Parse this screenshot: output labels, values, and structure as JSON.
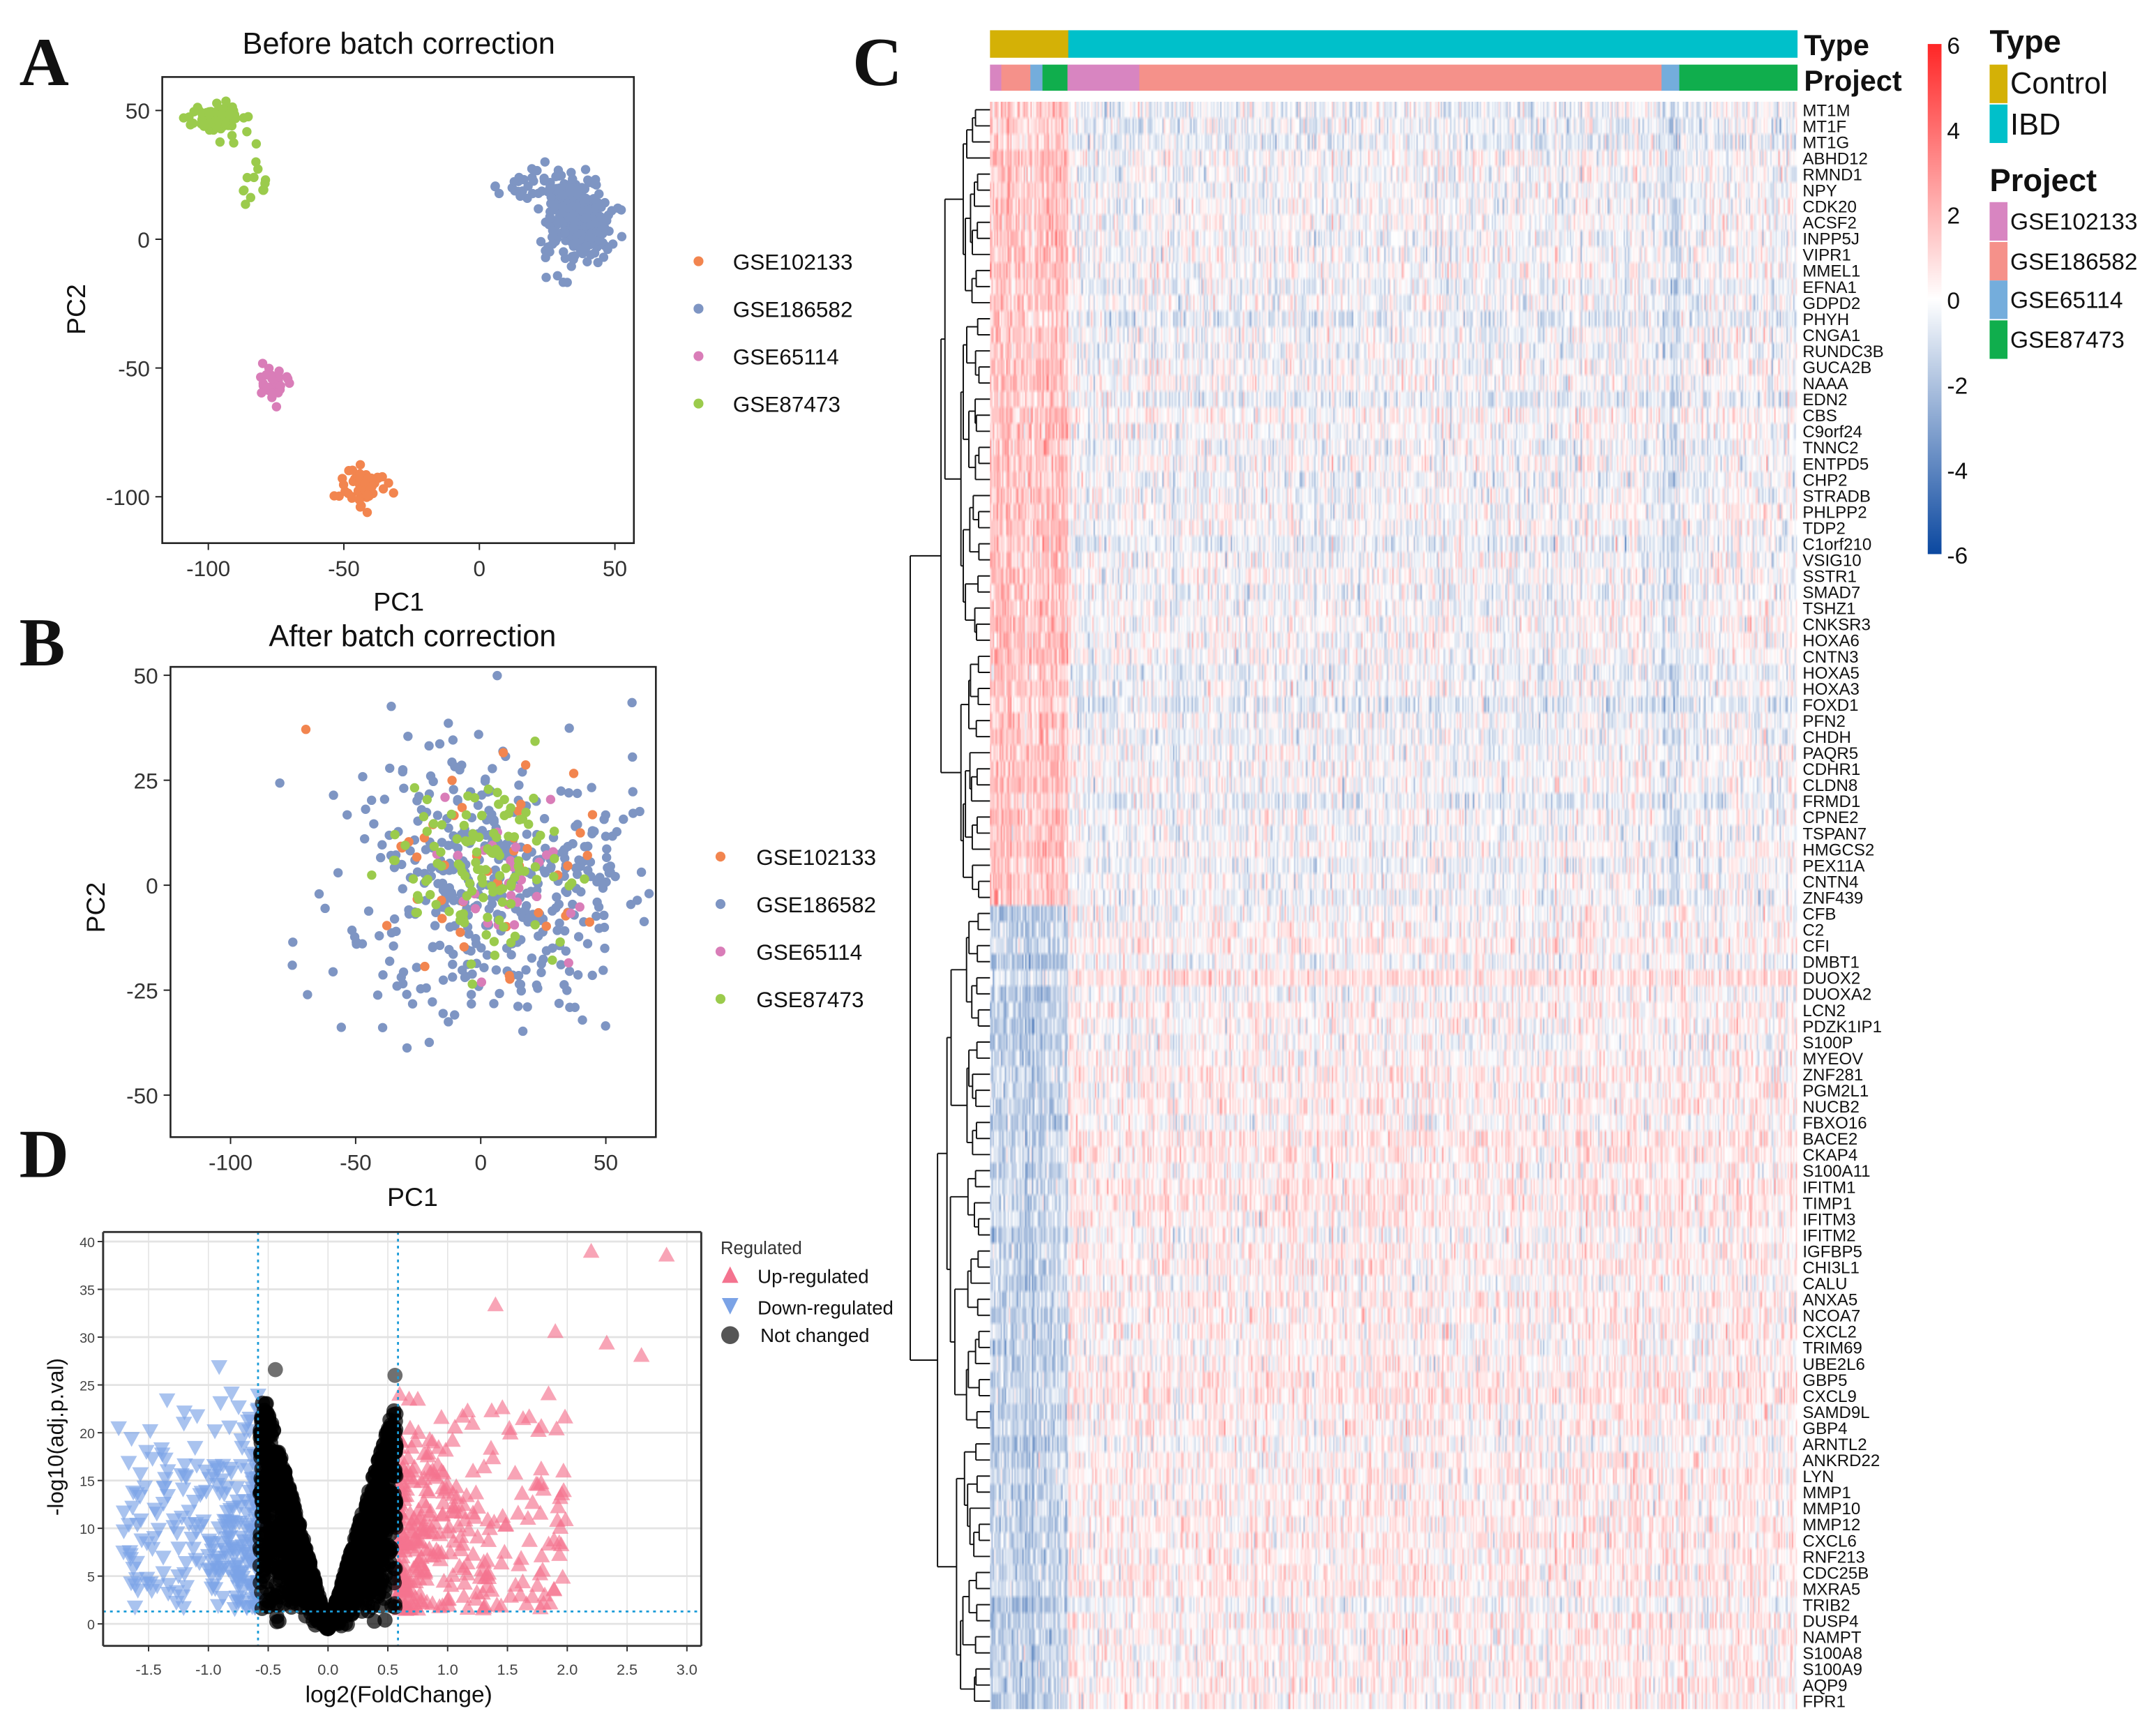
{
  "panels": {
    "a": "A",
    "b": "B",
    "c": "C",
    "d": "D"
  },
  "chart_data": [
    {
      "id": "A",
      "type": "scatter",
      "title": "Before batch correction",
      "xlabel": "PC1",
      "ylabel": "PC2",
      "xlim": [
        -117,
        57
      ],
      "ylim": [
        -118,
        63
      ],
      "xticks": [
        "-100",
        "-50",
        "0",
        "50"
      ],
      "xtick_values": [
        -100,
        -50,
        0,
        50
      ],
      "yticks": [
        "50",
        "0",
        "-50",
        "-100"
      ],
      "ytick_values": [
        50,
        0,
        -50,
        -100
      ],
      "legend": "right",
      "series": [
        {
          "name": "GSE102133",
          "color": "#F2854F",
          "clusters": [
            {
              "cx": -43,
              "cy": -96,
              "sx": 4,
              "sy": 4,
              "n": 60
            }
          ]
        },
        {
          "name": "GSE186582",
          "color": "#7E95C3",
          "clusters": [
            {
              "cx": 36,
              "cy": 8,
              "sx": 6,
              "sy": 8,
              "n": 280
            },
            {
              "cx": 20,
              "cy": 20,
              "sx": 8,
              "sy": 4,
              "n": 30
            }
          ]
        },
        {
          "name": "GSE65114",
          "color": "#D97DB8",
          "clusters": [
            {
              "cx": -77,
              "cy": -55,
              "sx": 3,
              "sy": 3,
              "n": 30
            }
          ]
        },
        {
          "name": "GSE87473",
          "color": "#9BCB4C",
          "clusters": [
            {
              "cx": -98,
              "cy": 47,
              "sx": 5,
              "sy": 3,
              "n": 80
            },
            {
              "cx": -82,
              "cy": 22,
              "sx": 3,
              "sy": 6,
              "n": 14
            }
          ]
        }
      ]
    },
    {
      "id": "B",
      "type": "scatter",
      "title": "After batch correction",
      "xlabel": "PC1",
      "ylabel": "PC2",
      "xlim": [
        -124,
        70
      ],
      "ylim": [
        -60,
        52
      ],
      "xticks": [
        "-100",
        "-50",
        "0",
        "50"
      ],
      "xtick_values": [
        -100,
        -50,
        0,
        50
      ],
      "yticks": [
        "50",
        "25",
        "0",
        "-25",
        "-50"
      ],
      "ytick_values": [
        50,
        25,
        0,
        -25,
        -50
      ],
      "legend": "right",
      "series": [
        {
          "name": "GSE102133",
          "color": "#F2854F",
          "clusters": [
            {
              "cx": 0,
              "cy": 5,
              "sx": 25,
              "sy": 14,
              "n": 45
            }
          ]
        },
        {
          "name": "GSE186582",
          "color": "#7E95C3",
          "clusters": [
            {
              "cx": 5,
              "cy": 0,
              "sx": 30,
              "sy": 17,
              "n": 420
            }
          ]
        },
        {
          "name": "GSE65114",
          "color": "#D97DB8",
          "clusters": [
            {
              "cx": 10,
              "cy": 3,
              "sx": 15,
              "sy": 9,
              "n": 30
            }
          ]
        },
        {
          "name": "GSE87473",
          "color": "#9BCB4C",
          "clusters": [
            {
              "cx": 5,
              "cy": 3,
              "sx": 18,
              "sy": 10,
              "n": 120
            }
          ]
        }
      ]
    },
    {
      "id": "C",
      "type": "heatmap",
      "annotation_rows": [
        "Type",
        "Project"
      ],
      "type_legend": {
        "title": "Type",
        "items": [
          {
            "name": "Control",
            "color": "#D4B106"
          },
          {
            "name": "IBD",
            "color": "#00C0CA"
          }
        ]
      },
      "project_legend": {
        "title": "Project",
        "items": [
          {
            "name": "GSE102133",
            "color": "#D885C1"
          },
          {
            "name": "GSE186582",
            "color": "#F5918A"
          },
          {
            "name": "GSE65114",
            "color": "#74ADDC"
          },
          {
            "name": "GSE87473",
            "color": "#10AE4D"
          }
        ]
      },
      "type_segments": [
        {
          "name": "Control",
          "fraction": 0.097
        },
        {
          "name": "IBD",
          "fraction": 0.903
        }
      ],
      "project_segments": [
        {
          "name": "GSE102133",
          "fraction": 0.014
        },
        {
          "name": "GSE186582",
          "fraction": 0.036
        },
        {
          "name": "GSE65114",
          "fraction": 0.015
        },
        {
          "name": "GSE87473",
          "fraction": 0.031
        },
        {
          "name": "GSE102133",
          "fraction": 0.089
        },
        {
          "name": "GSE186582",
          "fraction": 0.647
        },
        {
          "name": "GSE65114",
          "fraction": 0.022
        },
        {
          "name": "GSE87473",
          "fraction": 0.146
        }
      ],
      "colorbar": {
        "min": -6,
        "max": 6,
        "ticks": [
          "6",
          "4",
          "2",
          "0",
          "-2",
          "-4",
          "-6"
        ],
        "tick_values": [
          6,
          4,
          2,
          0,
          -2,
          -4,
          -6
        ],
        "low": "#0B48A0",
        "mid": "#FFFFFF",
        "high": "#FF2626"
      },
      "genes_down_in_ibd": [
        "MT1M",
        "MT1F",
        "MT1G",
        "ABHD12",
        "RMND1",
        "NPY",
        "CDK20",
        "ACSF2",
        "INPP5J",
        "VIPR1",
        "MMEL1",
        "EFNA1",
        "GDPD2",
        "PHYH",
        "CNGA1",
        "RUNDC3B",
        "GUCA2B",
        "NAAA",
        "EDN2",
        "CBS",
        "C9orf24",
        "TNNC2",
        "ENTPD5",
        "CHP2",
        "STRADB",
        "PHLPP2",
        "TDP2",
        "C1orf210",
        "VSIG10",
        "SSTR1",
        "SMAD7",
        "TSHZ1",
        "CNKSR3",
        "HOXA6",
        "CNTN3",
        "HOXA5",
        "HOXA3",
        "FOXD1",
        "PFN2",
        "CHDH",
        "PAQR5",
        "CDHR1",
        "CLDN8",
        "FRMD1",
        "CPNE2",
        "TSPAN7",
        "HMGCS2",
        "PEX11A",
        "CNTN4",
        "ZNF439"
      ],
      "genes_up_in_ibd": [
        "CFB",
        "C2",
        "CFI",
        "DMBT1",
        "DUOX2",
        "DUOXA2",
        "LCN2",
        "PDZK1IP1",
        "S100P",
        "MYEOV",
        "ZNF281",
        "PGM2L1",
        "NUCB2",
        "FBXO16",
        "BACE2",
        "CKAP4",
        "S100A11",
        "IFITM1",
        "TIMP1",
        "IFITM3",
        "IFITM2",
        "IGFBP5",
        "CHI3L1",
        "CALU",
        "ANXA5",
        "NCOA7",
        "CXCL2",
        "TRIM69",
        "UBE2L6",
        "GBP5",
        "CXCL9",
        "SAMD9L",
        "GBP4",
        "ARNTL2",
        "ANKRD22",
        "LYN",
        "MMP1",
        "MMP10",
        "MMP12",
        "CXCL6",
        "RNF213",
        "CDC25B",
        "MXRA5",
        "TRIB2",
        "DUSP4",
        "NAMPT",
        "S100A8",
        "S100A9",
        "AQP9",
        "FPR1"
      ]
    },
    {
      "id": "D",
      "type": "scatter",
      "subtype": "volcano",
      "xlabel": "log2(FoldChange)",
      "ylabel": "-log10(adj.p.val)",
      "xlim": [
        -1.88,
        3.12
      ],
      "ylim": [
        -2.3,
        41
      ],
      "xticks": [
        "-1.5",
        "-1.0",
        "-0.5",
        "0.0",
        "0.5",
        "1.0",
        "1.5",
        "2.0",
        "2.5",
        "3.0"
      ],
      "xtick_values": [
        -1.5,
        -1.0,
        -0.5,
        0,
        0.5,
        1.0,
        1.5,
        2.0,
        2.5,
        3.0
      ],
      "yticks": [
        "0",
        "5",
        "10",
        "15",
        "20",
        "25",
        "30",
        "35",
        "40"
      ],
      "ytick_values": [
        0,
        5,
        10,
        15,
        20,
        25,
        30,
        35,
        40
      ],
      "thresholds": {
        "log2fc": [
          -0.585,
          0.585
        ],
        "neg_log10_p": 1.3
      },
      "legend": {
        "title": "Regulated",
        "position": "right",
        "items": [
          {
            "name": "Up-regulated",
            "color": "#F4738F",
            "shape": "triangle-up"
          },
          {
            "name": "Down-regulated",
            "color": "#7BA3E6",
            "shape": "triangle-down"
          },
          {
            "name": "Not changed",
            "color": "#000000",
            "shape": "circle"
          }
        ]
      },
      "notable_points": [
        {
          "x": 2.2,
          "y": 39,
          "group": "Up-regulated"
        },
        {
          "x": 2.83,
          "y": 38.6,
          "group": "Up-regulated"
        },
        {
          "x": 1.4,
          "y": 33.4,
          "group": "Up-regulated"
        },
        {
          "x": 1.9,
          "y": 30.6,
          "group": "Up-regulated"
        },
        {
          "x": 2.33,
          "y": 29.4,
          "group": "Up-regulated"
        },
        {
          "x": 2.62,
          "y": 28.1,
          "group": "Up-regulated"
        },
        {
          "x": -1.75,
          "y": 20.5,
          "group": "Down-regulated"
        },
        {
          "x": -0.91,
          "y": 26.9,
          "group": "Down-regulated"
        },
        {
          "x": -0.44,
          "y": 26.6,
          "group": "Not changed"
        },
        {
          "x": 0.56,
          "y": 26,
          "group": "Not changed"
        }
      ]
    }
  ]
}
